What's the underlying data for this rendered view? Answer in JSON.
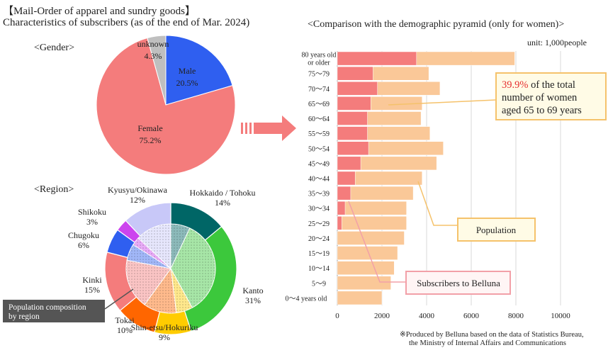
{
  "header": {
    "title_line1": "【Mail-Order of apparel and sundry goods】",
    "title_line2": "Characteristics of subscribers (as of the end of Mar. 2024)"
  },
  "gender": {
    "heading": "<Gender>"
  },
  "region": {
    "heading": "<Region>",
    "inner_label": "Population composition by region",
    "inner_label_lines": [
      "Population composition",
      "by region"
    ]
  },
  "pyramid": {
    "title": "<Comparison with the demographic pyramid (only for women)>",
    "unit": "unit: 1,000people",
    "callout_lines": [
      "39.9%",
      " of the total",
      "number of women",
      "aged 65 to 69 years"
    ],
    "population_label": "Population",
    "subscribers_label": "Subscribers to Belluna"
  },
  "source": {
    "line1": "※Produced by Belluna based on the data of Statistics Bureau,",
    "line2": "the Ministry of Internal Affairs and Communications"
  },
  "colors": {
    "female": "#f47c7c",
    "male": "#2f5ff0",
    "unknown": "#bfbfbf",
    "population": "#fac898",
    "subscribers": "#f47c7c",
    "callout_border": "#f5c26b",
    "callout_bg": "#fffbe6",
    "highlight_red": "#e63030",
    "arrow": "#f47c7c"
  },
  "chart_data": [
    {
      "type": "pie",
      "title": "",
      "labels": [
        "Male",
        "Female",
        "unknown"
      ],
      "values": [
        20.5,
        75.2,
        4.3
      ],
      "value_labels": [
        "20.5%",
        "75.2%",
        "4.3%"
      ],
      "colors": [
        "#2f5ff0",
        "#f47c7c",
        "#bfbfbf"
      ]
    },
    {
      "type": "pie",
      "title": "",
      "labels": [
        "Hokkaido / Tohoku",
        "Kanto",
        "Shin-etsu/Hokuriku",
        "Tokai",
        "Kinki",
        "Chugoku",
        "Shikoku",
        "Kyusyu/Okinawa"
      ],
      "values": [
        14,
        31,
        9,
        10,
        15,
        6,
        3,
        12
      ],
      "value_labels": [
        "14%",
        "31%",
        "9%",
        "10%",
        "15%",
        "6%",
        "3%",
        "12%"
      ],
      "population_composition": [
        7,
        35,
        6,
        12,
        18,
        6,
        3,
        13
      ],
      "colors": [
        "#006666",
        "#3cc83c",
        "#ffcc00",
        "#ff6600",
        "#f47c7c",
        "#2f5ff0",
        "#cc44ee",
        "#c8c8f8"
      ]
    },
    {
      "type": "bar",
      "orientation": "horizontal",
      "categories": [
        "80 years old or older",
        "75～79",
        "70～74",
        "65～69",
        "60～64",
        "55～59",
        "50～54",
        "45～49",
        "40～44",
        "35～39",
        "30～34",
        "25～29",
        "20～24",
        "15～19",
        "10～14",
        "5～9",
        "0～4 years old"
      ],
      "category_lines": [
        [
          "80 years old",
          "or older"
        ],
        [
          "75～79"
        ],
        [
          "70～74"
        ],
        [
          "65～69"
        ],
        [
          "60～64"
        ],
        [
          "55～59"
        ],
        [
          "50～54"
        ],
        [
          "45～49"
        ],
        [
          "40～44"
        ],
        [
          "35～39"
        ],
        [
          "30～34"
        ],
        [
          "25～29"
        ],
        [
          "20～24"
        ],
        [
          "15～19"
        ],
        [
          "10～14"
        ],
        [
          "5～9"
        ],
        [
          "0～4 years old"
        ]
      ],
      "series": [
        {
          "name": "Population",
          "values": [
            7950,
            4100,
            4600,
            3800,
            3750,
            4150,
            4750,
            4450,
            3800,
            3400,
            3100,
            3100,
            3000,
            2700,
            2550,
            2400,
            2000
          ]
        },
        {
          "name": "Subscribers to Belluna",
          "values": [
            3550,
            1600,
            1800,
            1500,
            1350,
            1350,
            1400,
            1050,
            800,
            600,
            350,
            200,
            0,
            0,
            0,
            0,
            0
          ]
        }
      ],
      "xlim": [
        0,
        10000
      ],
      "xticks": [
        0,
        2000,
        4000,
        6000,
        8000,
        10000
      ],
      "xtick_labels": [
        "0",
        "2000",
        "4000",
        "6000",
        "8000",
        "10000"
      ],
      "grid": true
    }
  ]
}
